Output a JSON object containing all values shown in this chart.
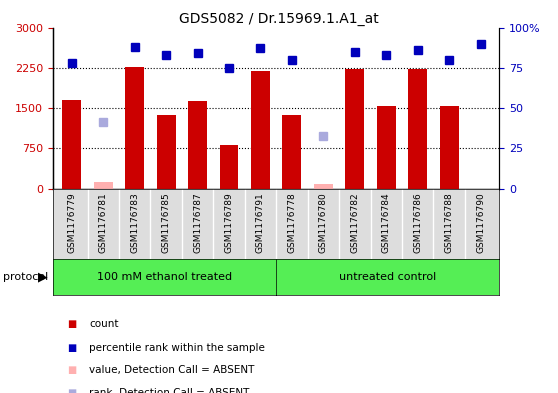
{
  "title": "GDS5082 / Dr.15969.1.A1_at",
  "samples": [
    "GSM1176779",
    "GSM1176781",
    "GSM1176783",
    "GSM1176785",
    "GSM1176787",
    "GSM1176789",
    "GSM1176791",
    "GSM1176778",
    "GSM1176780",
    "GSM1176782",
    "GSM1176784",
    "GSM1176786",
    "GSM1176788",
    "GSM1176790"
  ],
  "counts": [
    1650,
    0,
    2270,
    1380,
    1640,
    820,
    2190,
    1380,
    0,
    2220,
    1530,
    2220,
    1530,
    0
  ],
  "absent_counts": [
    0,
    120,
    0,
    0,
    0,
    0,
    0,
    0,
    90,
    0,
    0,
    0,
    0,
    0
  ],
  "percentile_ranks": [
    78,
    0,
    88,
    83,
    84,
    75,
    87,
    80,
    0,
    85,
    83,
    86,
    80,
    90
  ],
  "absent_ranks_left_scale": [
    0,
    1250,
    0,
    0,
    0,
    0,
    0,
    0,
    980,
    0,
    0,
    0,
    0,
    0
  ],
  "absent_mask": [
    false,
    true,
    false,
    false,
    false,
    false,
    false,
    false,
    true,
    false,
    false,
    false,
    false,
    false
  ],
  "group1_label": "100 mM ethanol treated",
  "group2_label": "untreated control",
  "group1_count": 7,
  "group2_count": 7,
  "ylim_left": [
    0,
    3000
  ],
  "ylim_right": [
    0,
    100
  ],
  "yticks_left": [
    0,
    750,
    1500,
    2250,
    3000
  ],
  "yticks_right": [
    0,
    25,
    50,
    75,
    100
  ],
  "legend_labels": [
    "count",
    "percentile rank within the sample",
    "value, Detection Call = ABSENT",
    "rank, Detection Call = ABSENT"
  ],
  "bar_color": "#CC0000",
  "absent_bar_color": "#FFB0B0",
  "rank_color": "#0000BB",
  "absent_rank_color": "#AAAADD",
  "group_bg_color": "#55EE55",
  "tick_area_bg": "#DDDDDD",
  "protocol_label": "protocol"
}
